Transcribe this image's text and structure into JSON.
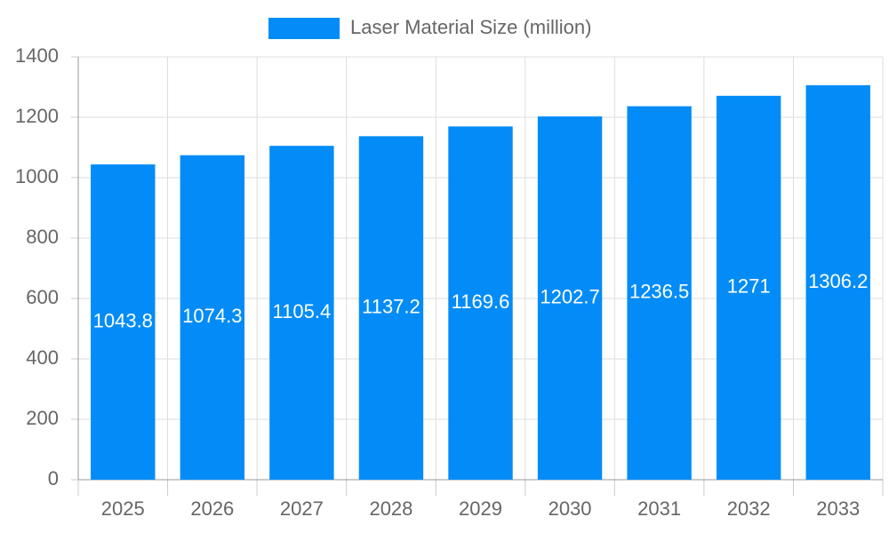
{
  "chart_data": {
    "type": "bar",
    "legend": "Laser Material Size (million)",
    "categories": [
      "2025",
      "2026",
      "2027",
      "2028",
      "2029",
      "2030",
      "2031",
      "2032",
      "2033"
    ],
    "values": [
      1043.8,
      1074.3,
      1105.4,
      1137.2,
      1169.6,
      1202.7,
      1236.5,
      1271,
      1306.2
    ],
    "color": "#038cf7",
    "ylim": [
      0,
      1400
    ],
    "yticks": [
      0,
      200,
      400,
      600,
      800,
      1000,
      1200,
      1400
    ],
    "grid": true
  }
}
